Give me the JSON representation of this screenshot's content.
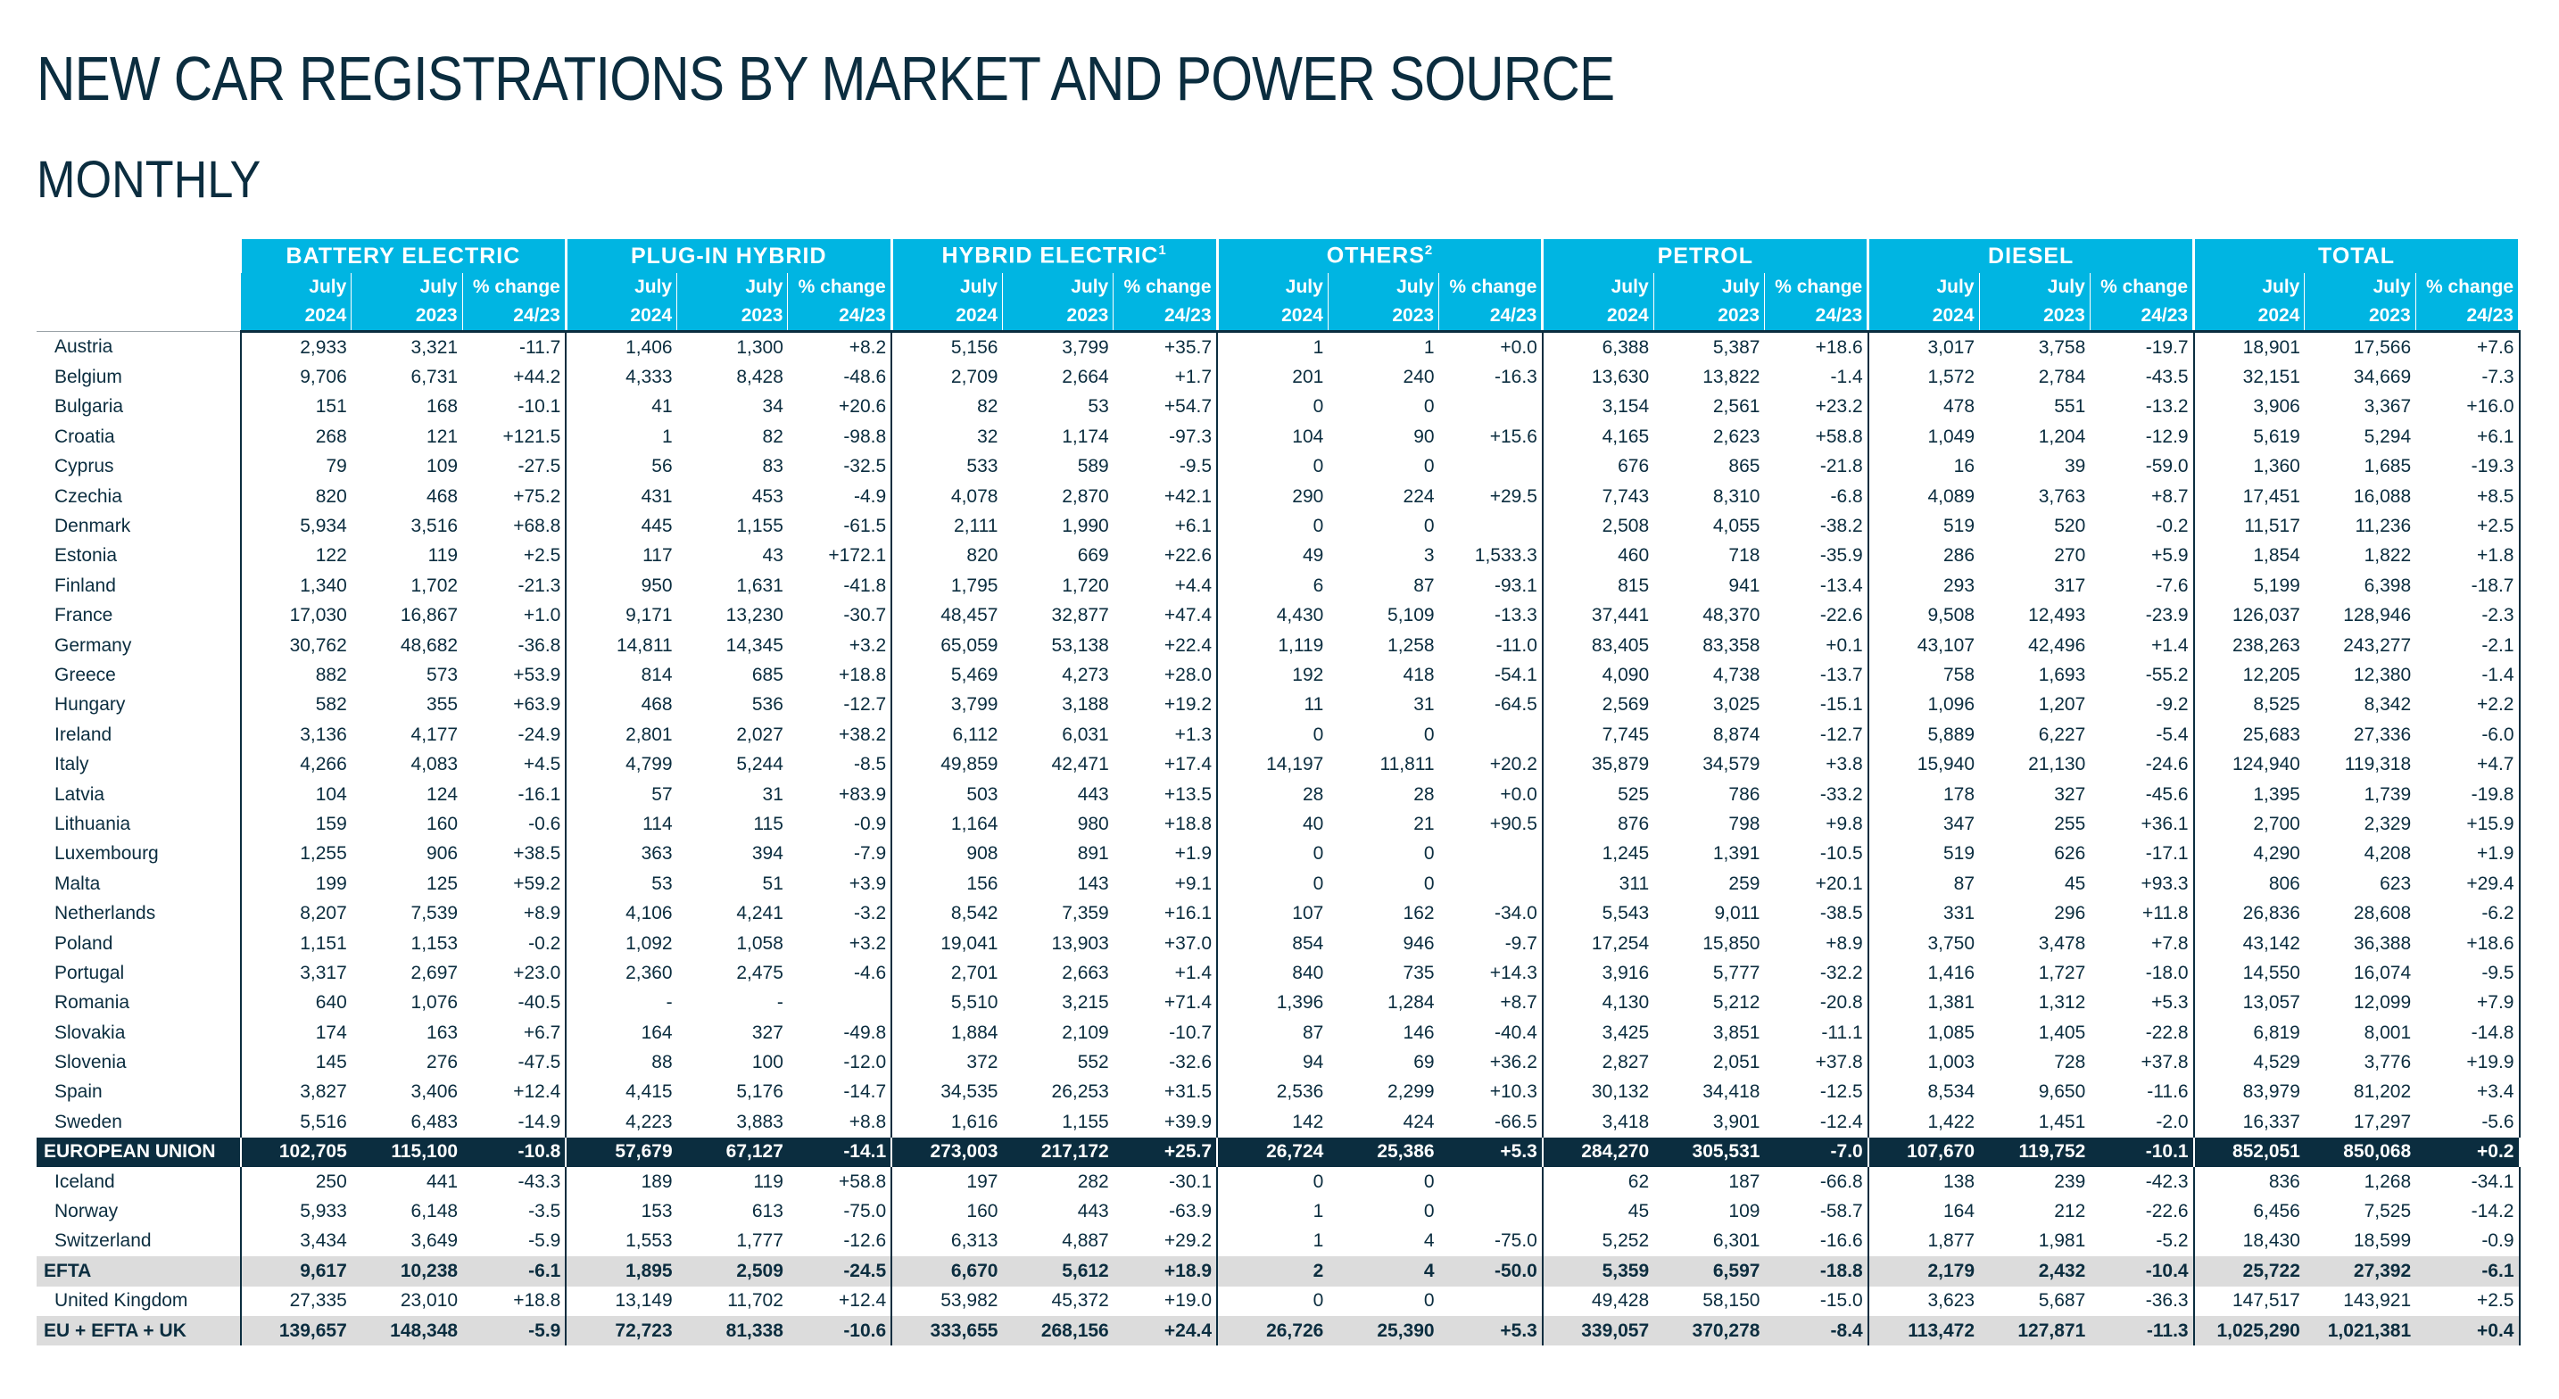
{
  "title": "NEW CAR REGISTRATIONS BY MARKET AND POWER SOURCE",
  "subtitle": "MONTHLY",
  "groups": [
    {
      "label": "BATTERY ELECTRIC",
      "note": ""
    },
    {
      "label": "PLUG-IN HYBRID",
      "note": ""
    },
    {
      "label": "HYBRID ELECTRIC",
      "note": "1"
    },
    {
      "label": "OTHERS",
      "note": "2"
    },
    {
      "label": "PETROL",
      "note": ""
    },
    {
      "label": "DIESEL",
      "note": ""
    },
    {
      "label": "TOTAL",
      "note": ""
    }
  ],
  "col_month": "July",
  "col_year_a": "2024",
  "col_year_b": "2023",
  "col_change": "% change",
  "col_change_period": "24/23",
  "rows": [
    {
      "type": "country",
      "cells": [
        "Austria",
        "2,933",
        "3,321",
        "-11.7",
        "1,406",
        "1,300",
        "+8.2",
        "5,156",
        "3,799",
        "+35.7",
        "1",
        "1",
        "+0.0",
        "6,388",
        "5,387",
        "+18.6",
        "3,017",
        "3,758",
        "-19.7",
        "18,901",
        "17,566",
        "+7.6"
      ]
    },
    {
      "type": "country",
      "cells": [
        "Belgium",
        "9,706",
        "6,731",
        "+44.2",
        "4,333",
        "8,428",
        "-48.6",
        "2,709",
        "2,664",
        "+1.7",
        "201",
        "240",
        "-16.3",
        "13,630",
        "13,822",
        "-1.4",
        "1,572",
        "2,784",
        "-43.5",
        "32,151",
        "34,669",
        "-7.3"
      ]
    },
    {
      "type": "country",
      "cells": [
        "Bulgaria",
        "151",
        "168",
        "-10.1",
        "41",
        "34",
        "+20.6",
        "82",
        "53",
        "+54.7",
        "0",
        "0",
        "",
        "3,154",
        "2,561",
        "+23.2",
        "478",
        "551",
        "-13.2",
        "3,906",
        "3,367",
        "+16.0"
      ]
    },
    {
      "type": "country",
      "cells": [
        "Croatia",
        "268",
        "121",
        "+121.5",
        "1",
        "82",
        "-98.8",
        "32",
        "1,174",
        "-97.3",
        "104",
        "90",
        "+15.6",
        "4,165",
        "2,623",
        "+58.8",
        "1,049",
        "1,204",
        "-12.9",
        "5,619",
        "5,294",
        "+6.1"
      ]
    },
    {
      "type": "country",
      "cells": [
        "Cyprus",
        "79",
        "109",
        "-27.5",
        "56",
        "83",
        "-32.5",
        "533",
        "589",
        "-9.5",
        "0",
        "0",
        "",
        "676",
        "865",
        "-21.8",
        "16",
        "39",
        "-59.0",
        "1,360",
        "1,685",
        "-19.3"
      ]
    },
    {
      "type": "country",
      "cells": [
        "Czechia",
        "820",
        "468",
        "+75.2",
        "431",
        "453",
        "-4.9",
        "4,078",
        "2,870",
        "+42.1",
        "290",
        "224",
        "+29.5",
        "7,743",
        "8,310",
        "-6.8",
        "4,089",
        "3,763",
        "+8.7",
        "17,451",
        "16,088",
        "+8.5"
      ]
    },
    {
      "type": "country",
      "cells": [
        "Denmark",
        "5,934",
        "3,516",
        "+68.8",
        "445",
        "1,155",
        "-61.5",
        "2,111",
        "1,990",
        "+6.1",
        "0",
        "0",
        "",
        "2,508",
        "4,055",
        "-38.2",
        "519",
        "520",
        "-0.2",
        "11,517",
        "11,236",
        "+2.5"
      ]
    },
    {
      "type": "country",
      "cells": [
        "Estonia",
        "122",
        "119",
        "+2.5",
        "117",
        "43",
        "+172.1",
        "820",
        "669",
        "+22.6",
        "49",
        "3",
        "1,533.3",
        "460",
        "718",
        "-35.9",
        "286",
        "270",
        "+5.9",
        "1,854",
        "1,822",
        "+1.8"
      ]
    },
    {
      "type": "country",
      "cells": [
        "Finland",
        "1,340",
        "1,702",
        "-21.3",
        "950",
        "1,631",
        "-41.8",
        "1,795",
        "1,720",
        "+4.4",
        "6",
        "87",
        "-93.1",
        "815",
        "941",
        "-13.4",
        "293",
        "317",
        "-7.6",
        "5,199",
        "6,398",
        "-18.7"
      ]
    },
    {
      "type": "country",
      "cells": [
        "France",
        "17,030",
        "16,867",
        "+1.0",
        "9,171",
        "13,230",
        "-30.7",
        "48,457",
        "32,877",
        "+47.4",
        "4,430",
        "5,109",
        "-13.3",
        "37,441",
        "48,370",
        "-22.6",
        "9,508",
        "12,493",
        "-23.9",
        "126,037",
        "128,946",
        "-2.3"
      ]
    },
    {
      "type": "country",
      "cells": [
        "Germany",
        "30,762",
        "48,682",
        "-36.8",
        "14,811",
        "14,345",
        "+3.2",
        "65,059",
        "53,138",
        "+22.4",
        "1,119",
        "1,258",
        "-11.0",
        "83,405",
        "83,358",
        "+0.1",
        "43,107",
        "42,496",
        "+1.4",
        "238,263",
        "243,277",
        "-2.1"
      ]
    },
    {
      "type": "country",
      "cells": [
        "Greece",
        "882",
        "573",
        "+53.9",
        "814",
        "685",
        "+18.8",
        "5,469",
        "4,273",
        "+28.0",
        "192",
        "418",
        "-54.1",
        "4,090",
        "4,738",
        "-13.7",
        "758",
        "1,693",
        "-55.2",
        "12,205",
        "12,380",
        "-1.4"
      ]
    },
    {
      "type": "country",
      "cells": [
        "Hungary",
        "582",
        "355",
        "+63.9",
        "468",
        "536",
        "-12.7",
        "3,799",
        "3,188",
        "+19.2",
        "11",
        "31",
        "-64.5",
        "2,569",
        "3,025",
        "-15.1",
        "1,096",
        "1,207",
        "-9.2",
        "8,525",
        "8,342",
        "+2.2"
      ]
    },
    {
      "type": "country",
      "cells": [
        "Ireland",
        "3,136",
        "4,177",
        "-24.9",
        "2,801",
        "2,027",
        "+38.2",
        "6,112",
        "6,031",
        "+1.3",
        "0",
        "0",
        "",
        "7,745",
        "8,874",
        "-12.7",
        "5,889",
        "6,227",
        "-5.4",
        "25,683",
        "27,336",
        "-6.0"
      ]
    },
    {
      "type": "country",
      "cells": [
        "Italy",
        "4,266",
        "4,083",
        "+4.5",
        "4,799",
        "5,244",
        "-8.5",
        "49,859",
        "42,471",
        "+17.4",
        "14,197",
        "11,811",
        "+20.2",
        "35,879",
        "34,579",
        "+3.8",
        "15,940",
        "21,130",
        "-24.6",
        "124,940",
        "119,318",
        "+4.7"
      ]
    },
    {
      "type": "country",
      "cells": [
        "Latvia",
        "104",
        "124",
        "-16.1",
        "57",
        "31",
        "+83.9",
        "503",
        "443",
        "+13.5",
        "28",
        "28",
        "+0.0",
        "525",
        "786",
        "-33.2",
        "178",
        "327",
        "-45.6",
        "1,395",
        "1,739",
        "-19.8"
      ]
    },
    {
      "type": "country",
      "cells": [
        "Lithuania",
        "159",
        "160",
        "-0.6",
        "114",
        "115",
        "-0.9",
        "1,164",
        "980",
        "+18.8",
        "40",
        "21",
        "+90.5",
        "876",
        "798",
        "+9.8",
        "347",
        "255",
        "+36.1",
        "2,700",
        "2,329",
        "+15.9"
      ]
    },
    {
      "type": "country",
      "cells": [
        "Luxembourg",
        "1,255",
        "906",
        "+38.5",
        "363",
        "394",
        "-7.9",
        "908",
        "891",
        "+1.9",
        "0",
        "0",
        "",
        "1,245",
        "1,391",
        "-10.5",
        "519",
        "626",
        "-17.1",
        "4,290",
        "4,208",
        "+1.9"
      ]
    },
    {
      "type": "country",
      "cells": [
        "Malta",
        "199",
        "125",
        "+59.2",
        "53",
        "51",
        "+3.9",
        "156",
        "143",
        "+9.1",
        "0",
        "0",
        "",
        "311",
        "259",
        "+20.1",
        "87",
        "45",
        "+93.3",
        "806",
        "623",
        "+29.4"
      ]
    },
    {
      "type": "country",
      "cells": [
        "Netherlands",
        "8,207",
        "7,539",
        "+8.9",
        "4,106",
        "4,241",
        "-3.2",
        "8,542",
        "7,359",
        "+16.1",
        "107",
        "162",
        "-34.0",
        "5,543",
        "9,011",
        "-38.5",
        "331",
        "296",
        "+11.8",
        "26,836",
        "28,608",
        "-6.2"
      ]
    },
    {
      "type": "country",
      "cells": [
        "Poland",
        "1,151",
        "1,153",
        "-0.2",
        "1,092",
        "1,058",
        "+3.2",
        "19,041",
        "13,903",
        "+37.0",
        "854",
        "946",
        "-9.7",
        "17,254",
        "15,850",
        "+8.9",
        "3,750",
        "3,478",
        "+7.8",
        "43,142",
        "36,388",
        "+18.6"
      ]
    },
    {
      "type": "country",
      "cells": [
        "Portugal",
        "3,317",
        "2,697",
        "+23.0",
        "2,360",
        "2,475",
        "-4.6",
        "2,701",
        "2,663",
        "+1.4",
        "840",
        "735",
        "+14.3",
        "3,916",
        "5,777",
        "-32.2",
        "1,416",
        "1,727",
        "-18.0",
        "14,550",
        "16,074",
        "-9.5"
      ]
    },
    {
      "type": "country",
      "cells": [
        "Romania",
        "640",
        "1,076",
        "-40.5",
        "-",
        "-",
        "",
        "5,510",
        "3,215",
        "+71.4",
        "1,396",
        "1,284",
        "+8.7",
        "4,130",
        "5,212",
        "-20.8",
        "1,381",
        "1,312",
        "+5.3",
        "13,057",
        "12,099",
        "+7.9"
      ]
    },
    {
      "type": "country",
      "cells": [
        "Slovakia",
        "174",
        "163",
        "+6.7",
        "164",
        "327",
        "-49.8",
        "1,884",
        "2,109",
        "-10.7",
        "87",
        "146",
        "-40.4",
        "3,425",
        "3,851",
        "-11.1",
        "1,085",
        "1,405",
        "-22.8",
        "6,819",
        "8,001",
        "-14.8"
      ]
    },
    {
      "type": "country",
      "cells": [
        "Slovenia",
        "145",
        "276",
        "-47.5",
        "88",
        "100",
        "-12.0",
        "372",
        "552",
        "-32.6",
        "94",
        "69",
        "+36.2",
        "2,827",
        "2,051",
        "+37.8",
        "1,003",
        "728",
        "+37.8",
        "4,529",
        "3,776",
        "+19.9"
      ]
    },
    {
      "type": "country",
      "cells": [
        "Spain",
        "3,827",
        "3,406",
        "+12.4",
        "4,415",
        "5,176",
        "-14.7",
        "34,535",
        "26,253",
        "+31.5",
        "2,536",
        "2,299",
        "+10.3",
        "30,132",
        "34,418",
        "-12.5",
        "8,534",
        "9,650",
        "-11.6",
        "83,979",
        "81,202",
        "+3.4"
      ]
    },
    {
      "type": "country",
      "cells": [
        "Sweden",
        "5,516",
        "6,483",
        "-14.9",
        "4,223",
        "3,883",
        "+8.8",
        "1,616",
        "1,155",
        "+39.9",
        "142",
        "424",
        "-66.5",
        "3,418",
        "3,901",
        "-12.4",
        "1,422",
        "1,451",
        "-2.0",
        "16,337",
        "17,297",
        "-5.6"
      ]
    },
    {
      "type": "eu",
      "cells": [
        "EUROPEAN UNION",
        "102,705",
        "115,100",
        "-10.8",
        "57,679",
        "67,127",
        "-14.1",
        "273,003",
        "217,172",
        "+25.7",
        "26,724",
        "25,386",
        "+5.3",
        "284,270",
        "305,531",
        "-7.0",
        "107,670",
        "119,752",
        "-10.1",
        "852,051",
        "850,068",
        "+0.2"
      ]
    },
    {
      "type": "country",
      "cells": [
        "Iceland",
        "250",
        "441",
        "-43.3",
        "189",
        "119",
        "+58.8",
        "197",
        "282",
        "-30.1",
        "0",
        "0",
        "",
        "62",
        "187",
        "-66.8",
        "138",
        "239",
        "-42.3",
        "836",
        "1,268",
        "-34.1"
      ]
    },
    {
      "type": "country",
      "cells": [
        "Norway",
        "5,933",
        "6,148",
        "-3.5",
        "153",
        "613",
        "-75.0",
        "160",
        "443",
        "-63.9",
        "1",
        "0",
        "",
        "45",
        "109",
        "-58.7",
        "164",
        "212",
        "-22.6",
        "6,456",
        "7,525",
        "-14.2"
      ]
    },
    {
      "type": "country",
      "cells": [
        "Switzerland",
        "3,434",
        "3,649",
        "-5.9",
        "1,553",
        "1,777",
        "-12.6",
        "6,313",
        "4,887",
        "+29.2",
        "1",
        "4",
        "-75.0",
        "5,252",
        "6,301",
        "-16.6",
        "1,877",
        "1,981",
        "-5.2",
        "18,430",
        "18,599",
        "-0.9"
      ]
    },
    {
      "type": "efta",
      "cells": [
        "EFTA",
        "9,617",
        "10,238",
        "-6.1",
        "1,895",
        "2,509",
        "-24.5",
        "6,670",
        "5,612",
        "+18.9",
        "2",
        "4",
        "-50.0",
        "5,359",
        "6,597",
        "-18.8",
        "2,179",
        "2,432",
        "-10.4",
        "25,722",
        "27,392",
        "-6.1"
      ]
    },
    {
      "type": "country",
      "cells": [
        "United Kingdom",
        "27,335",
        "23,010",
        "+18.8",
        "13,149",
        "11,702",
        "+12.4",
        "53,982",
        "45,372",
        "+19.0",
        "0",
        "0",
        "",
        "49,428",
        "58,150",
        "-15.0",
        "3,623",
        "5,687",
        "-36.3",
        "147,517",
        "143,921",
        "+2.5"
      ]
    },
    {
      "type": "total",
      "cells": [
        "EU + EFTA + UK",
        "139,657",
        "148,348",
        "-5.9",
        "72,723",
        "81,338",
        "-10.6",
        "333,655",
        "268,156",
        "+24.4",
        "26,726",
        "25,390",
        "+5.3",
        "339,057",
        "370,278",
        "-8.4",
        "113,472",
        "127,871",
        "-11.3",
        "1,025,290",
        "1,021,381",
        "+0.4"
      ]
    }
  ]
}
